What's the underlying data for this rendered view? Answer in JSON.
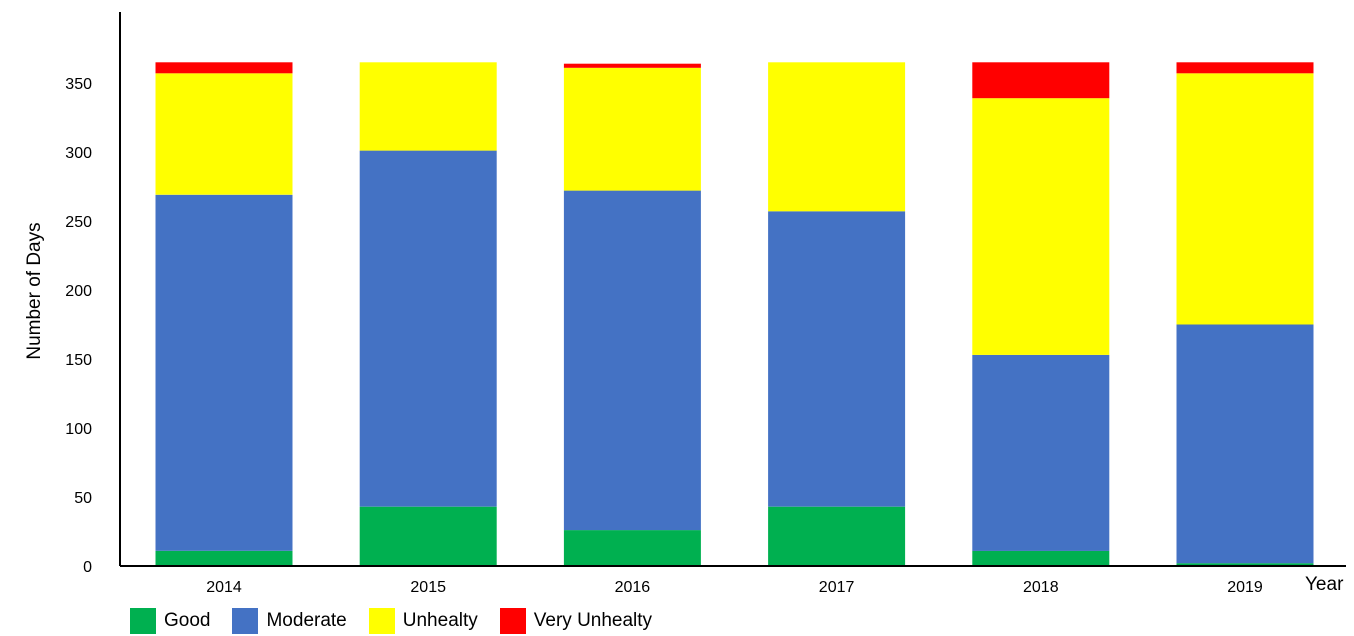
{
  "chart_data": {
    "type": "bar",
    "stacked": true,
    "title": "",
    "xlabel": "Year",
    "ylabel": "Number of Days",
    "ylim": [
      0,
      370
    ],
    "yticks": [
      0,
      50,
      100,
      150,
      200,
      250,
      300,
      350
    ],
    "grid": false,
    "legend_position": "bottom-left",
    "categories": [
      "2014",
      "2015",
      "2016",
      "2017",
      "2018",
      "2019"
    ],
    "series": [
      {
        "name": "Good",
        "color": "#00B050",
        "values": [
          11,
          43,
          26,
          43,
          11,
          2
        ]
      },
      {
        "name": "Moderate",
        "color": "#4472C4",
        "values": [
          258,
          258,
          246,
          214,
          142,
          173
        ]
      },
      {
        "name": "Unhealty",
        "color": "#FFFF00",
        "values": [
          88,
          64,
          89,
          108,
          186,
          182
        ]
      },
      {
        "name": "Very Unhealty",
        "color": "#FF0000",
        "values": [
          8,
          0,
          3,
          0,
          26,
          8
        ]
      }
    ]
  }
}
